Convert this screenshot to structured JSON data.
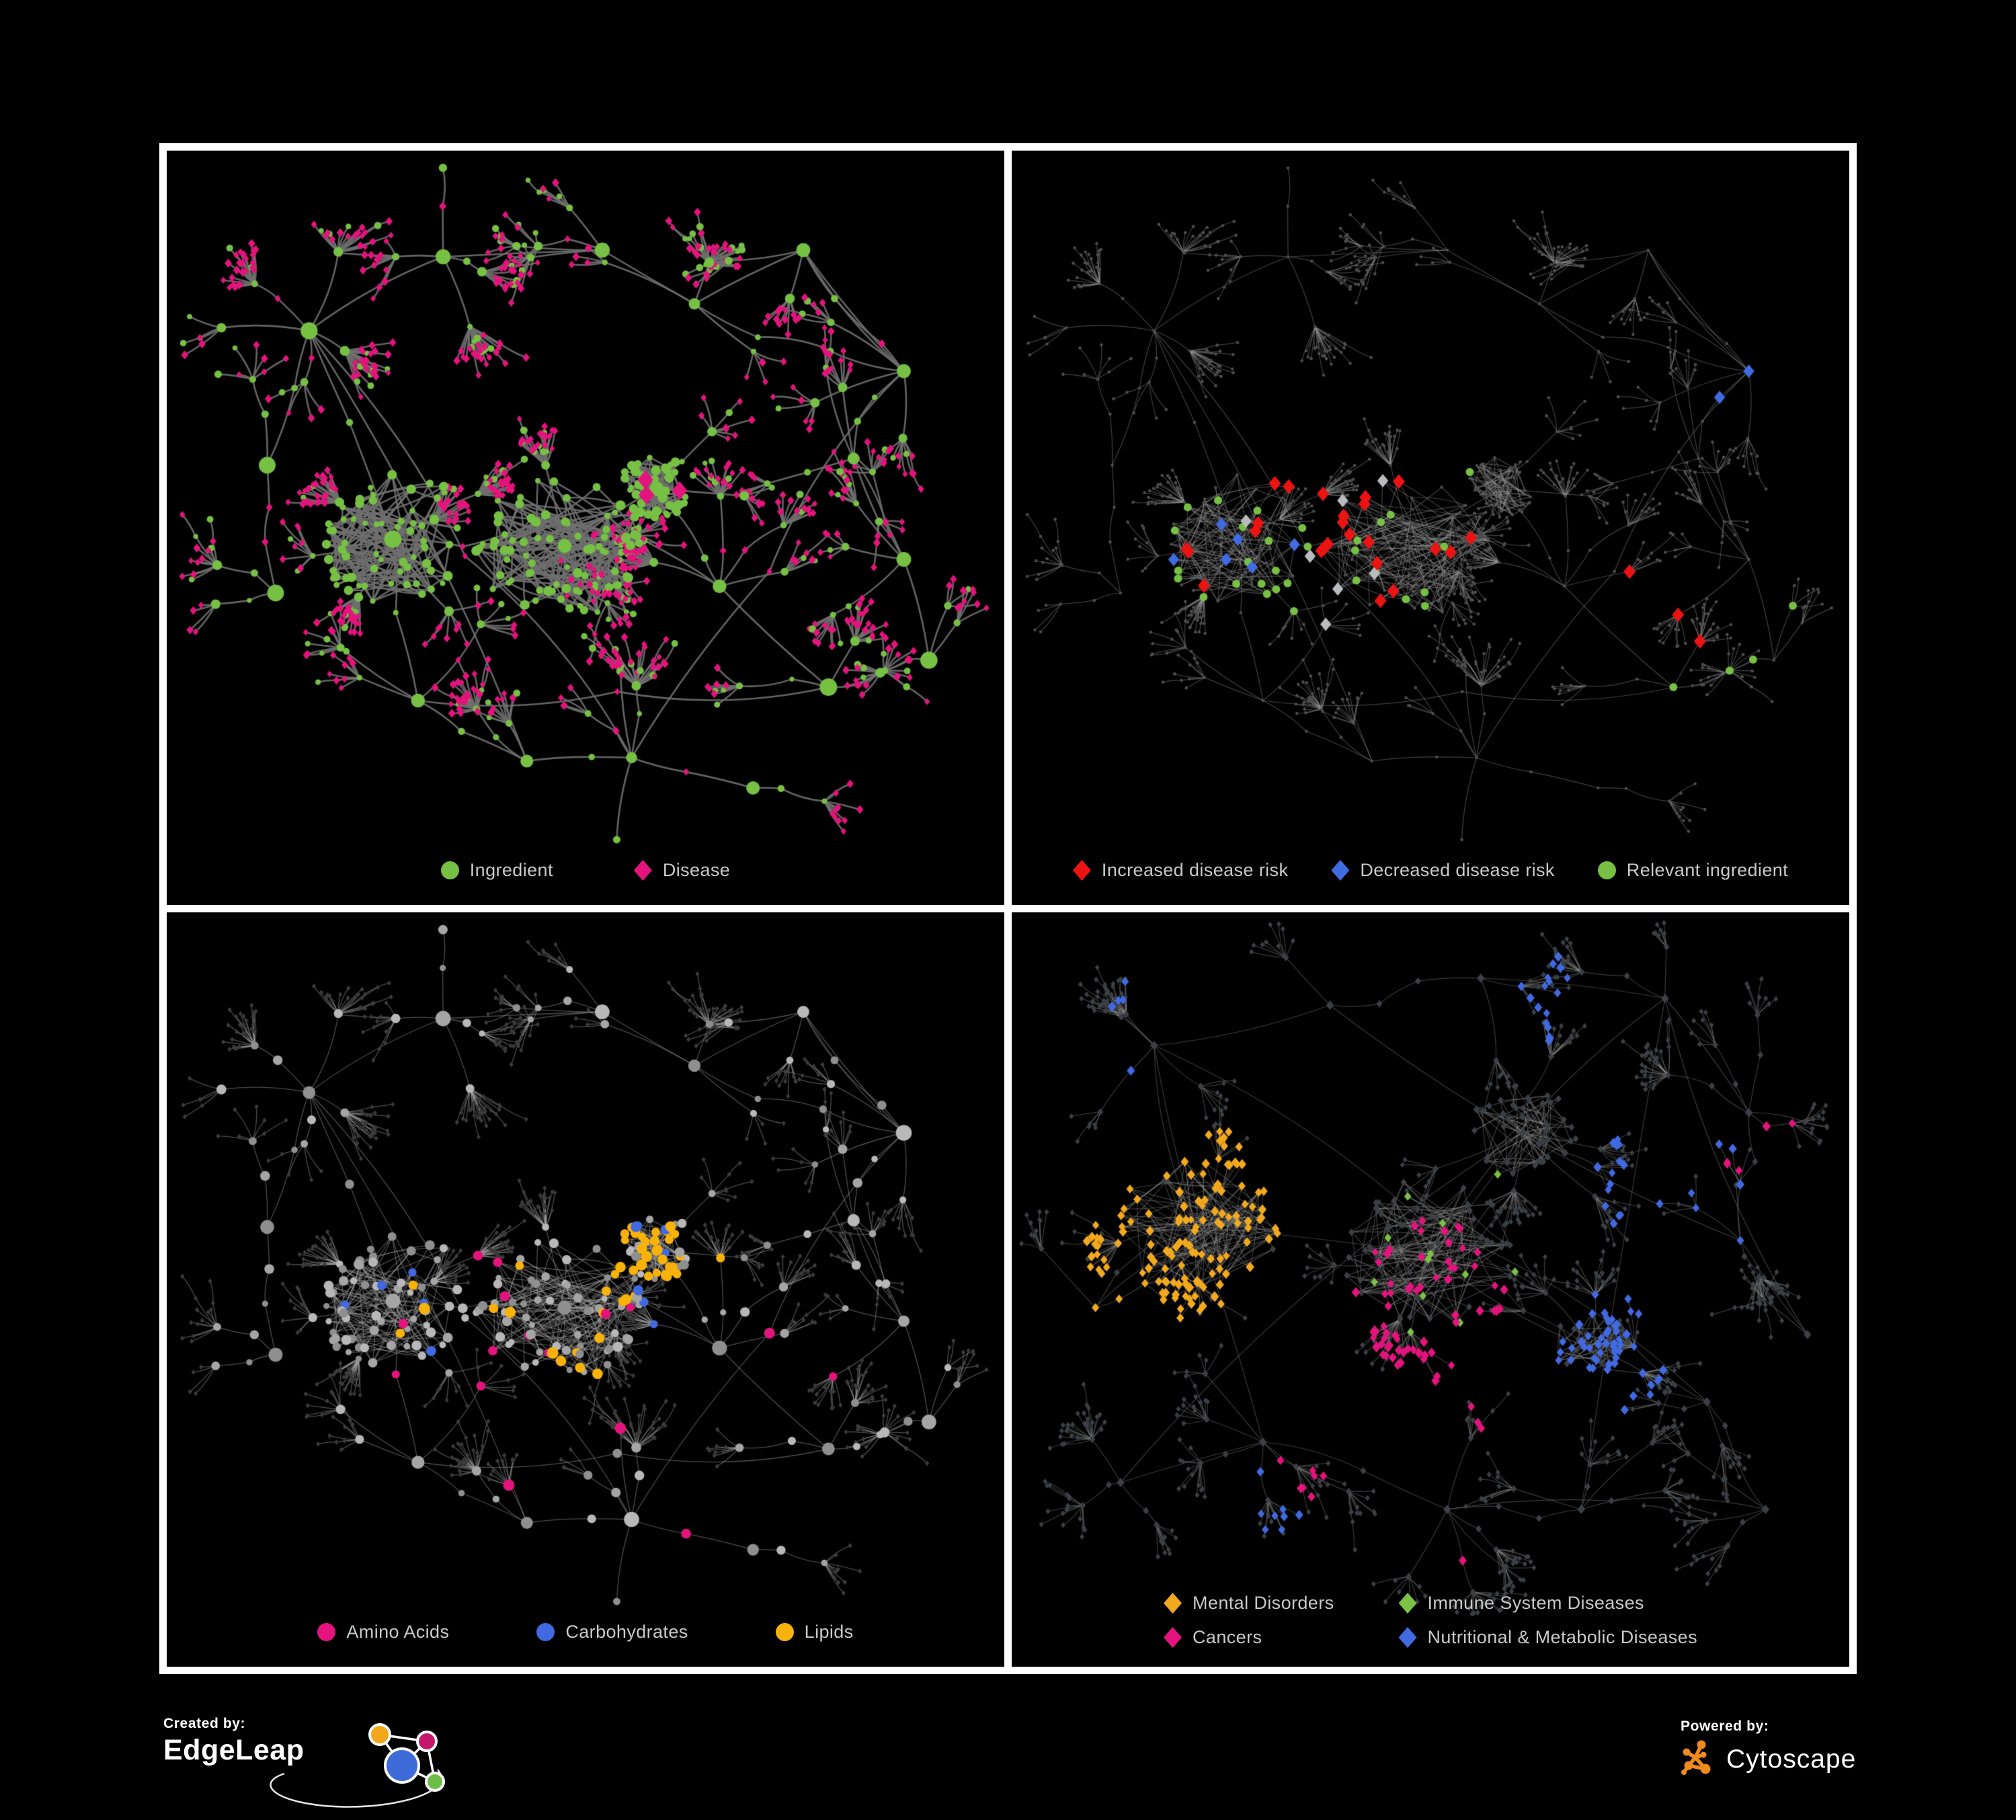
{
  "page": {
    "background": "#000000",
    "frame_color": "#ffffff"
  },
  "panels": [
    {
      "id": "ingredient-disease",
      "legend": [
        {
          "shape": "circle",
          "color": "#76C043",
          "label": "Ingredient"
        },
        {
          "shape": "diamond",
          "color": "#E5137D",
          "label": "Disease"
        }
      ]
    },
    {
      "id": "disease-risk",
      "legend": [
        {
          "shape": "diamond",
          "color": "#EC1313",
          "label": "Increased disease risk"
        },
        {
          "shape": "diamond",
          "color": "#3F6BE3",
          "label": "Decreased disease risk"
        },
        {
          "shape": "circle",
          "color": "#76C043",
          "label": "Relevant ingredient"
        }
      ]
    },
    {
      "id": "compound-classes",
      "legend": [
        {
          "shape": "circle",
          "color": "#E5137D",
          "label": "Amino Acids"
        },
        {
          "shape": "circle",
          "color": "#4169E1",
          "label": "Carbohydrates"
        },
        {
          "shape": "circle",
          "color": "#F9B20A",
          "label": "Lipids"
        }
      ]
    },
    {
      "id": "disease-classes",
      "legend": [
        {
          "shape": "diamond",
          "color": "#F2A91E",
          "label": "Mental Disorders"
        },
        {
          "shape": "diamond",
          "color": "#7CC143",
          "label": "Immune System Diseases"
        },
        {
          "shape": "diamond",
          "color": "#E5137D",
          "label": "Cancers"
        },
        {
          "shape": "diamond",
          "color": "#4169E1",
          "label": "Nutritional & Metabolic Diseases"
        }
      ]
    }
  ],
  "footer": {
    "created_by": "Created by:",
    "edgeleap": "EdgeLeap",
    "powered_by": "Powered by:",
    "cytoscape": "Cytoscape",
    "edgeleap_colors": {
      "blue": "#3D6CD9",
      "orange": "#F2A71B",
      "magenta": "#C4176B",
      "green": "#6CBE45"
    },
    "cytoscape_orange": "#EF8A1D"
  },
  "chart_data": {
    "type": "network",
    "description": "Four renderings of food-ingredient / disease association networks (Cytoscape export). Panels 1-3 share one layout; panel 4 is a disease-class network layout.",
    "generators": {
      "foods": {
        "seed": 1337,
        "anchors": [
          [
            0.27,
            0.55,
            5,
            62,
            122
          ],
          [
            0.475,
            0.56,
            5,
            72,
            132
          ],
          [
            0.585,
            0.475,
            3,
            42,
            56
          ],
          [
            0.17,
            0.24,
            3,
            0,
            0
          ],
          [
            0.33,
            0.13,
            3,
            0,
            0
          ],
          [
            0.52,
            0.12,
            3,
            0,
            0
          ],
          [
            0.63,
            0.2,
            3,
            0,
            0
          ],
          [
            0.76,
            0.12,
            2,
            0,
            0
          ],
          [
            0.88,
            0.3,
            3,
            0,
            0
          ],
          [
            0.82,
            0.43,
            3,
            0,
            0
          ],
          [
            0.12,
            0.44,
            2,
            0,
            0
          ],
          [
            0.13,
            0.63,
            2,
            0,
            0
          ],
          [
            0.3,
            0.79,
            3,
            0,
            0
          ],
          [
            0.43,
            0.88,
            2,
            0,
            0
          ],
          [
            0.555,
            0.875,
            3,
            0,
            0
          ],
          [
            0.66,
            0.62,
            3,
            0,
            0
          ],
          [
            0.79,
            0.77,
            3,
            0,
            0
          ],
          [
            0.88,
            0.58,
            2,
            0,
            0
          ],
          [
            0.7,
            0.92,
            2,
            0,
            0
          ],
          [
            0.91,
            0.73,
            2,
            0,
            0
          ]
        ],
        "subDist": [
          60,
          150
        ],
        "leafDist": [
          20,
          55
        ],
        "leafRange": [
          4,
          13
        ],
        "cross": 7
      },
      "diseases": {
        "seed": 7331,
        "anchors": [
          [
            0.22,
            0.44,
            5,
            72,
            122
          ],
          [
            0.5,
            0.48,
            5,
            82,
            132
          ],
          [
            0.61,
            0.3,
            4,
            40,
            82
          ],
          [
            0.69,
            0.62,
            4,
            30,
            62
          ],
          [
            0.3,
            0.76,
            4,
            0,
            0
          ],
          [
            0.17,
            0.17,
            3,
            0,
            0
          ],
          [
            0.38,
            0.11,
            3,
            0,
            0
          ],
          [
            0.56,
            0.07,
            3,
            0,
            0
          ],
          [
            0.78,
            0.1,
            3,
            0,
            0
          ],
          [
            0.88,
            0.27,
            3,
            0,
            0
          ],
          [
            0.87,
            0.46,
            3,
            0,
            0
          ],
          [
            0.83,
            0.7,
            3,
            0,
            0
          ],
          [
            0.52,
            0.86,
            3,
            0,
            0
          ],
          [
            0.1,
            0.56,
            2,
            0,
            0
          ],
          [
            0.13,
            0.82,
            2,
            0,
            0
          ],
          [
            0.68,
            0.86,
            2,
            0,
            0
          ],
          [
            0.9,
            0.86,
            2,
            0,
            0
          ],
          [
            0.95,
            0.6,
            2,
            0,
            0
          ]
        ],
        "subDist": [
          60,
          150
        ],
        "leafDist": [
          20,
          55
        ],
        "leafRange": [
          5,
          15
        ],
        "cross": 8
      }
    },
    "panels": [
      {
        "id": "ingredient-disease",
        "generator": "foods",
        "paint": {
          "mode": "classes",
          "seed": 11,
          "circle_color": "#76C043",
          "diamond_color": "#E5137D",
          "leaf_diamond_p": 0.78,
          "big_diamonds": 3,
          "edge": {
            "color": "#6F6F6F",
            "alpha": 0.9,
            "width": 2.6
          }
        }
      },
      {
        "id": "disease-risk",
        "generator": "foods",
        "paint": {
          "mode": "risk",
          "seed": 22,
          "base_color": "#4E4E4E",
          "base_r": 2.3,
          "red": {
            "color": "#EC1313",
            "count": 27,
            "size": 11
          },
          "blue": {
            "color": "#3F6BE3",
            "count": 8,
            "size": 10
          },
          "silver": {
            "color": "#B9BCBE",
            "count": 7,
            "size": 10
          },
          "green": {
            "color": "#76C043",
            "count": 34,
            "size": 6
          },
          "edge": {
            "color": "#9C9C9C",
            "alpha": 0.42,
            "width": 1.2
          }
        }
      },
      {
        "id": "compound-classes",
        "generator": "foods",
        "paint": {
          "mode": "groups",
          "seed": 33,
          "leaf_color": "#3B3B3B",
          "circle_colors": [
            "#8F8F8F",
            "#A5A5A5",
            "#B8B8B8"
          ],
          "orange": {
            "color": "#F9B20A",
            "near": 30,
            "far": 18
          },
          "blue": {
            "color": "#4169E1",
            "near": 7,
            "far": 5
          },
          "pink": {
            "color": "#E5137D",
            "count": 16
          },
          "edge": {
            "color": "#ABABAB",
            "alpha": 0.45,
            "width": 1.3
          }
        }
      },
      {
        "id": "disease-classes",
        "generator": "diseases",
        "paint": {
          "mode": "clusters",
          "seed": 44,
          "base_color": "#3B4046",
          "clusters": [
            {
              "color": "#F2A91E",
              "spots": [
                [
                  0.21,
                  0.44,
                  150,
                  0.85
                ],
                [
                  0.13,
                  0.5,
                  90,
                  0.5
                ],
                [
                  0.27,
                  0.37,
                  85,
                  0.5
                ],
                [
                  0.33,
                  0.6,
                  70,
                  0.35
                ]
              ]
            },
            {
              "color": "#E5137D",
              "spots": [
                [
                  0.5,
                  0.55,
                  120,
                  0.7
                ],
                [
                  0.56,
                  0.66,
                  95,
                  0.5
                ],
                [
                  0.88,
                  0.3,
                  75,
                  0.55
                ],
                [
                  0.5,
                  0.93,
                  65,
                  0.4
                ],
                [
                  0.34,
                  0.8,
                  55,
                  0.3
                ]
              ]
            },
            {
              "color": "#4169E1",
              "spots": [
                [
                  0.7,
                  0.63,
                  100,
                  0.75
                ],
                [
                  0.8,
                  0.38,
                  130,
                  0.35
                ],
                [
                  0.6,
                  0.1,
                  100,
                  0.4
                ],
                [
                  0.95,
                  0.42,
                  65,
                  0.5
                ],
                [
                  0.3,
                  0.88,
                  85,
                  0.3
                ],
                [
                  0.17,
                  0.14,
                  80,
                  0.4
                ],
                [
                  0.45,
                  0.25,
                  70,
                  0.25
                ]
              ]
            }
          ],
          "green": {
            "color": "#7CC143",
            "count": 12
          },
          "edge": {
            "color": "#9C9C9C",
            "alpha": 0.38,
            "width": 1.2
          }
        }
      }
    ]
  }
}
